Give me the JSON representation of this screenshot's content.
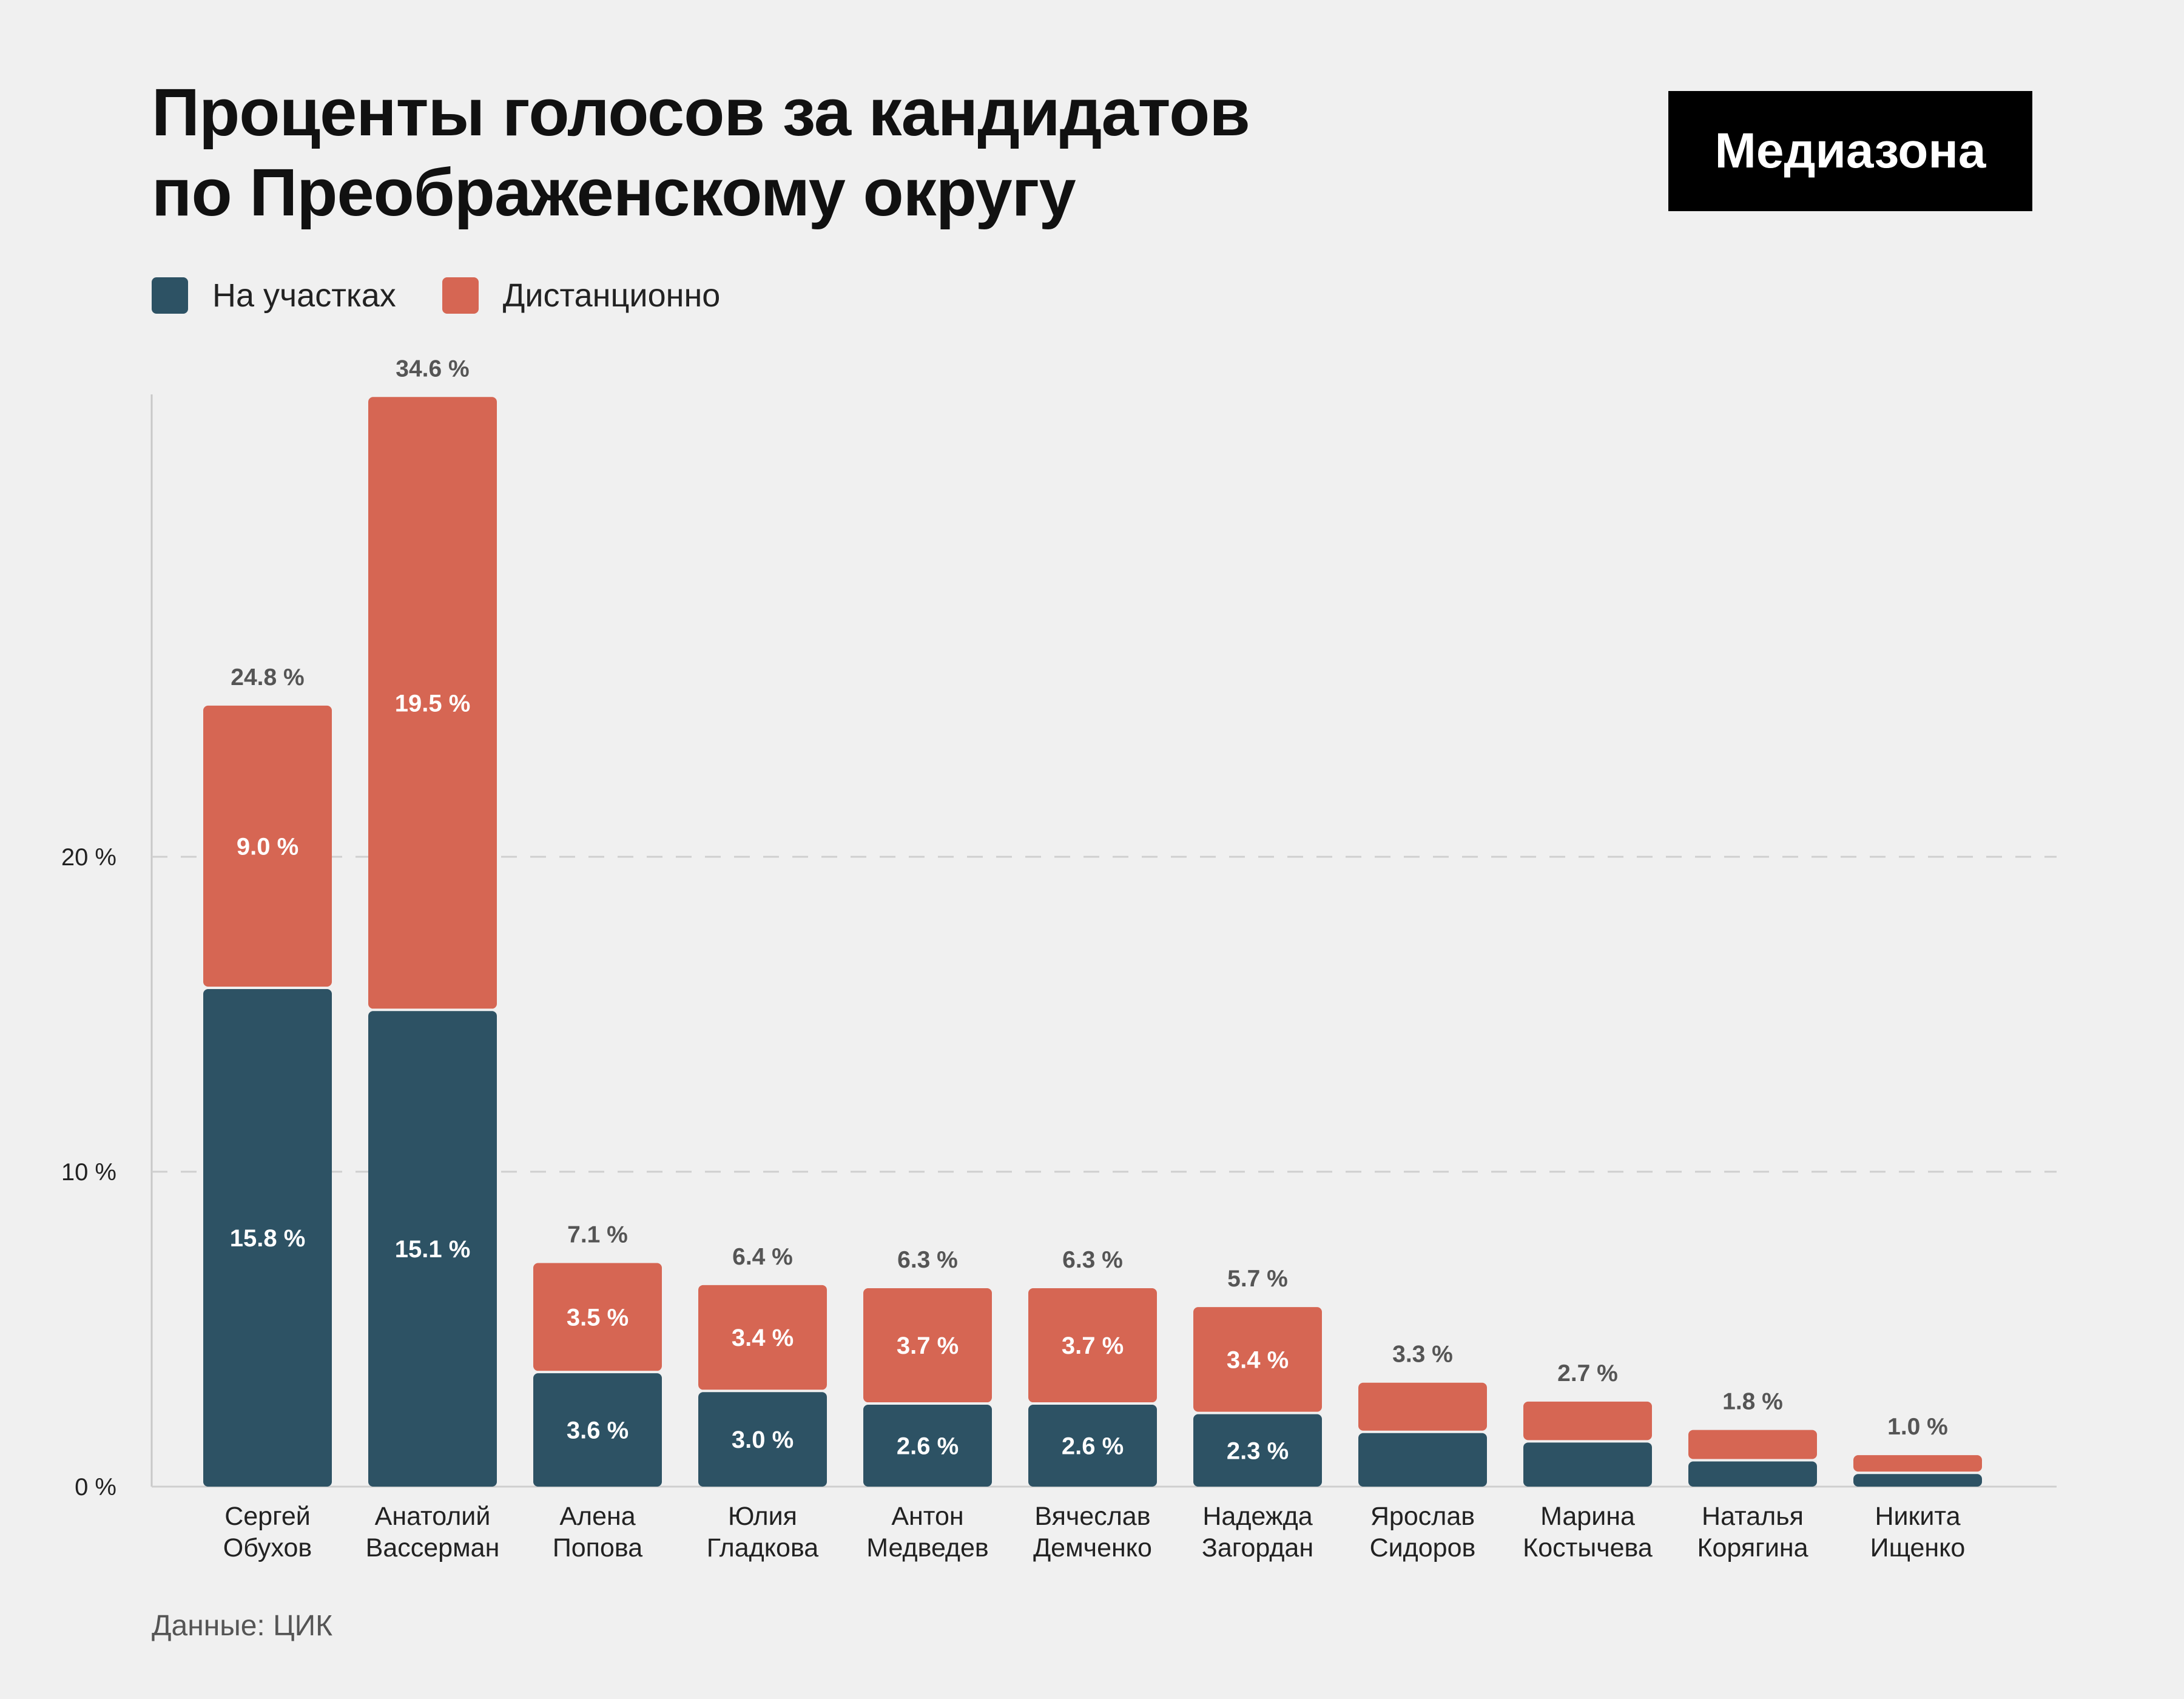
{
  "title_lines": [
    "Проценты голосов за кандидатов",
    "по Преображенскому округу"
  ],
  "logo": "Медиазона",
  "legend": [
    {
      "label": "На участках",
      "color": "#2d5264"
    },
    {
      "label": "Дистанционно",
      "color": "#d66653"
    }
  ],
  "source": "Данные: ЦИК",
  "chart_data": {
    "type": "bar",
    "stacked": true,
    "categories": [
      [
        "Сергей",
        "Обухов"
      ],
      [
        "Анатолий",
        "Вассерман"
      ],
      [
        "Алена",
        "Попова"
      ],
      [
        "Юлия",
        "Гладкова"
      ],
      [
        "Антон",
        "Медведев"
      ],
      [
        "Вячеслав",
        "Демченко"
      ],
      [
        "Надежда",
        "Загордан"
      ],
      [
        "Ярослав",
        "Сидоров"
      ],
      [
        "Марина",
        "Костычева"
      ],
      [
        "Наталья",
        "Корягина"
      ],
      [
        "Никита",
        "Ищенко"
      ]
    ],
    "series": [
      {
        "name": "На участках",
        "color": "#2d5264",
        "values": [
          15.8,
          15.1,
          3.6,
          3.0,
          2.6,
          2.6,
          2.3,
          1.7,
          1.4,
          0.8,
          0.4
        ],
        "labels": [
          "15.8 %",
          "15.1 %",
          "3.6 %",
          "3.0 %",
          "2.6 %",
          "2.6 %",
          "2.3 %",
          "",
          "",
          "",
          ""
        ]
      },
      {
        "name": "Дистанционно",
        "color": "#d66653",
        "values": [
          9.0,
          19.5,
          3.5,
          3.4,
          3.7,
          3.7,
          3.4,
          1.6,
          1.3,
          1.0,
          0.6
        ],
        "labels": [
          "9.0 %",
          "19.5 %",
          "3.5 %",
          "3.4 %",
          "3.7 %",
          "3.7 %",
          "3.4 %",
          "",
          "",
          "",
          ""
        ]
      }
    ],
    "totals": [
      "24.8 %",
      "34.6 %",
      "7.1 %",
      "6.4 %",
      "6.3 %",
      "6.3 %",
      "5.7 %",
      "3.3 %",
      "2.7 %",
      "1.8 %",
      "1.0 %"
    ],
    "total_values": [
      24.8,
      34.6,
      7.1,
      6.4,
      6.3,
      6.3,
      5.7,
      3.3,
      2.7,
      1.8,
      1.0
    ],
    "y_ticks": [
      {
        "value": 0,
        "label": "0 %"
      },
      {
        "value": 10,
        "label": "10 %"
      },
      {
        "value": 20,
        "label": "20 %"
      }
    ],
    "ylim": [
      0,
      34.6
    ],
    "grid": true,
    "legend_position": "top-left"
  }
}
